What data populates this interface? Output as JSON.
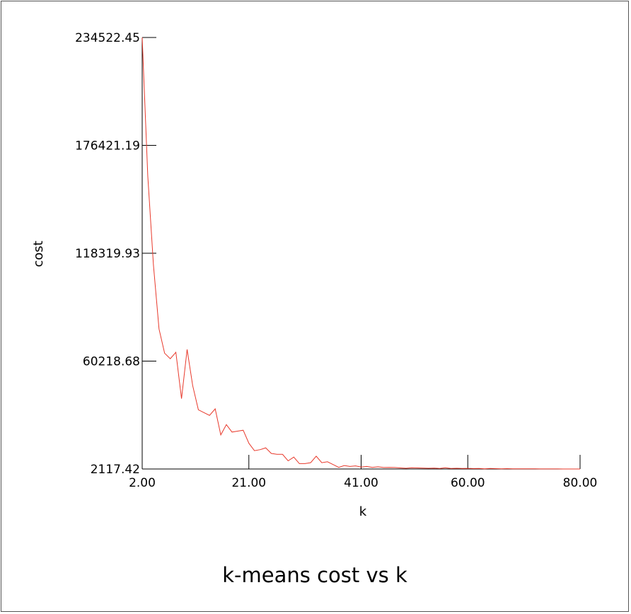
{
  "chart_data": {
    "type": "line",
    "title": "k-means cost vs k",
    "xlabel": "k",
    "ylabel": "cost",
    "xlim": [
      2.0,
      80.0
    ],
    "ylim": [
      2117.42,
      234522.45
    ],
    "x_ticks": [
      "2.00",
      "21.00",
      "41.00",
      "60.00",
      "80.00"
    ],
    "y_ticks": [
      "2117.42",
      "60218.68",
      "118319.93",
      "176421.19",
      "234522.45"
    ],
    "grid": false,
    "legend": "none",
    "line_color": "#e8392b",
    "series": [
      {
        "x": [
          2,
          3,
          4,
          5,
          6,
          7,
          8,
          9,
          10,
          11,
          12,
          13,
          14,
          15,
          16,
          17,
          18,
          19,
          20,
          21,
          22,
          23,
          24,
          25,
          26,
          27,
          28,
          29,
          30,
          31,
          32,
          33,
          34,
          35,
          36,
          37,
          38,
          39,
          40,
          41,
          42,
          43,
          44,
          45,
          46,
          47,
          48,
          49,
          50,
          51,
          52,
          53,
          54,
          55,
          56,
          57,
          58,
          59,
          60,
          61,
          62,
          63,
          64,
          65,
          66,
          67,
          68,
          69,
          70,
          71,
          72,
          73,
          74,
          75,
          76,
          77,
          78,
          79,
          80
        ],
        "y": [
          234522.45,
          160000,
          112000,
          77500,
          64500,
          61500,
          65000,
          40000,
          66500,
          47000,
          34000,
          32500,
          31000,
          34500,
          20500,
          26000,
          22000,
          22500,
          23000,
          16000,
          12000,
          12500,
          13500,
          10500,
          10000,
          10000,
          6500,
          8500,
          5000,
          5000,
          5500,
          9000,
          5500,
          6000,
          4500,
          3000,
          4000,
          3500,
          3800,
          3200,
          3500,
          3000,
          3300,
          2900,
          3000,
          2900,
          2700,
          2500,
          2800,
          2700,
          2600,
          2500,
          2600,
          2400,
          2800,
          2400,
          2500,
          2400,
          2450,
          2350,
          2400,
          2200,
          2400,
          2300,
          2250,
          2300,
          2200,
          2250,
          2200,
          2180,
          2200,
          2170,
          2160,
          2150,
          2140,
          2130,
          2125,
          2120,
          2117.42
        ]
      }
    ]
  }
}
